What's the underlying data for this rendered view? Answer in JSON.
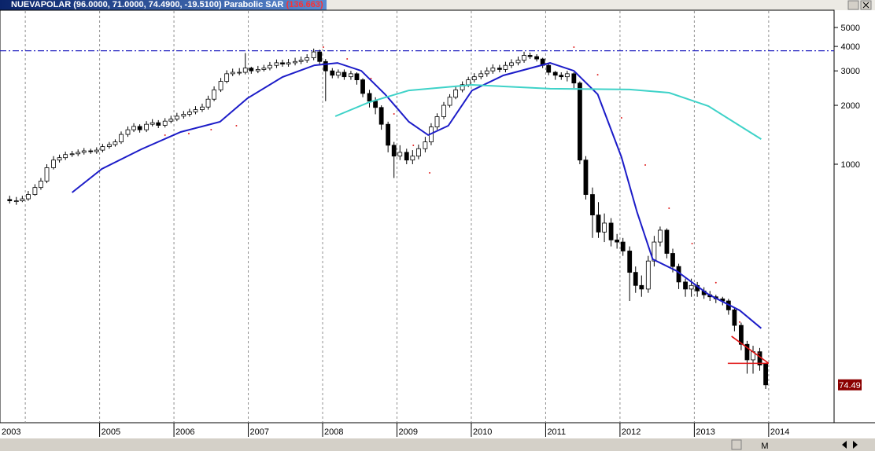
{
  "chart_data": {
    "type": "candlestick",
    "title": "NUEVAPOLAR",
    "ohlc_text": "(96.0000, 71.0000, 74.4900, -19.5100)",
    "indicator": "Parabolic SAR",
    "indicator_value_text": "(136.663)",
    "toolbar_label": "M",
    "log_y": true,
    "grid": "x",
    "up_color": "#ffffff",
    "down_color": "#000000",
    "xlim": [
      2003.66,
      2014.88
    ],
    "ylim": [
      47.7,
      6070
    ],
    "yticks": [
      1000,
      2000,
      3000,
      4000,
      5000
    ],
    "xticks": [
      2003,
      2005,
      2006,
      2007,
      2008,
      2009,
      2010,
      2011,
      2012,
      2013,
      2014
    ],
    "xgrid": [
      2004,
      2005,
      2006,
      2007,
      2008,
      2009,
      2010,
      2011,
      2012,
      2013,
      2014
    ],
    "x": [
      2003.79,
      2003.88,
      2003.96,
      2004.04,
      2004.13,
      2004.21,
      2004.29,
      2004.38,
      2004.46,
      2004.54,
      2004.63,
      2004.71,
      2004.79,
      2004.88,
      2004.96,
      2005.04,
      2005.13,
      2005.21,
      2005.29,
      2005.38,
      2005.46,
      2005.54,
      2005.63,
      2005.71,
      2005.79,
      2005.88,
      2005.96,
      2006.04,
      2006.13,
      2006.21,
      2006.29,
      2006.38,
      2006.46,
      2006.54,
      2006.63,
      2006.71,
      2006.79,
      2006.88,
      2006.96,
      2007.04,
      2007.13,
      2007.21,
      2007.29,
      2007.38,
      2007.46,
      2007.54,
      2007.63,
      2007.71,
      2007.79,
      2007.88,
      2007.96,
      2008.04,
      2008.13,
      2008.21,
      2008.29,
      2008.38,
      2008.46,
      2008.54,
      2008.63,
      2008.71,
      2008.79,
      2008.88,
      2008.96,
      2009.04,
      2009.13,
      2009.21,
      2009.29,
      2009.38,
      2009.46,
      2009.54,
      2009.63,
      2009.71,
      2009.79,
      2009.88,
      2009.96,
      2010.04,
      2010.13,
      2010.21,
      2010.29,
      2010.38,
      2010.46,
      2010.54,
      2010.63,
      2010.71,
      2010.79,
      2010.88,
      2010.96,
      2011.04,
      2011.13,
      2011.21,
      2011.29,
      2011.38,
      2011.46,
      2011.54,
      2011.63,
      2011.71,
      2011.79,
      2011.88,
      2011.96,
      2012.04,
      2012.13,
      2012.21,
      2012.29,
      2012.38,
      2012.46,
      2012.54,
      2012.63,
      2012.71,
      2012.79,
      2012.88,
      2012.96,
      2013.04,
      2013.13,
      2013.21,
      2013.29,
      2013.38,
      2013.46,
      2013.54,
      2013.63,
      2013.71,
      2013.79,
      2013.88,
      2013.96
    ],
    "open": [
      660,
      650,
      650,
      665,
      700,
      760,
      820,
      960,
      1050,
      1080,
      1120,
      1130,
      1150,
      1170,
      1160,
      1180,
      1230,
      1260,
      1300,
      1420,
      1500,
      1560,
      1500,
      1600,
      1630,
      1580,
      1660,
      1700,
      1760,
      1800,
      1850,
      1900,
      1960,
      2150,
      2400,
      2650,
      2900,
      2950,
      2950,
      3100,
      3000,
      3050,
      3100,
      3200,
      3300,
      3250,
      3300,
      3350,
      3400,
      3500,
      3750,
      3350,
      3000,
      2850,
      2950,
      2800,
      2900,
      2700,
      2300,
      2100,
      1950,
      1600,
      1250,
      1100,
      1150,
      1050,
      1100,
      1200,
      1300,
      1550,
      1750,
      2000,
      2200,
      2400,
      2550,
      2700,
      2800,
      2900,
      3000,
      3100,
      3050,
      3200,
      3300,
      3400,
      3600,
      3550,
      3450,
      3200,
      2950,
      2850,
      2800,
      2900,
      2600,
      1050,
      700,
      550,
      450,
      500,
      410,
      400,
      360,
      280,
      240,
      230,
      320,
      400,
      460,
      350,
      300,
      250,
      230,
      240,
      225,
      215,
      210,
      205,
      200,
      180,
      150,
      120,
      100,
      110,
      96
    ],
    "high": [
      690,
      680,
      690,
      730,
      790,
      850,
      1000,
      1100,
      1120,
      1160,
      1170,
      1190,
      1210,
      1200,
      1220,
      1270,
      1300,
      1340,
      1470,
      1560,
      1620,
      1600,
      1660,
      1700,
      1680,
      1720,
      1770,
      1830,
      1870,
      1920,
      1980,
      2040,
      2240,
      2500,
      2760,
      3020,
      3080,
      3100,
      3700,
      3150,
      3180,
      3220,
      3330,
      3430,
      3420,
      3450,
      3500,
      3550,
      3650,
      3900,
      3850,
      3450,
      3100,
      3050,
      3050,
      3000,
      2950,
      2750,
      2400,
      2200,
      2000,
      1650,
      1300,
      1250,
      1200,
      1180,
      1260,
      1380,
      1620,
      1820,
      2080,
      2280,
      2500,
      2650,
      2800,
      2920,
      3020,
      3130,
      3240,
      3220,
      3340,
      3440,
      3550,
      3760,
      3720,
      3650,
      3500,
      3250,
      3000,
      2950,
      3000,
      2950,
      2650,
      1100,
      760,
      640,
      560,
      530,
      440,
      420,
      380,
      300,
      270,
      340,
      430,
      480,
      470,
      370,
      310,
      260,
      260,
      250,
      235,
      225,
      215,
      210,
      205,
      185,
      155,
      125,
      118,
      115,
      96
    ],
    "low": [
      630,
      620,
      640,
      650,
      690,
      740,
      800,
      940,
      1020,
      1050,
      1090,
      1100,
      1120,
      1130,
      1130,
      1150,
      1200,
      1230,
      1270,
      1380,
      1460,
      1450,
      1460,
      1560,
      1530,
      1540,
      1620,
      1660,
      1710,
      1750,
      1800,
      1850,
      1900,
      2100,
      2340,
      2590,
      2820,
      2850,
      2880,
      2900,
      2920,
      2980,
      3020,
      3100,
      3150,
      3150,
      3200,
      3250,
      3300,
      3400,
      3200,
      2100,
      2750,
      2750,
      2700,
      2700,
      2550,
      2200,
      1950,
      1800,
      1500,
      1150,
      850,
      1050,
      1000,
      1000,
      1060,
      1150,
      1250,
      1500,
      1700,
      1950,
      2150,
      2330,
      2480,
      2620,
      2720,
      2800,
      2900,
      2950,
      2950,
      3100,
      3200,
      3300,
      3450,
      3350,
      3100,
      2850,
      2700,
      2700,
      2650,
      2450,
      1000,
      660,
      420,
      420,
      400,
      380,
      370,
      340,
      200,
      220,
      210,
      220,
      300,
      380,
      330,
      280,
      230,
      210,
      210,
      210,
      205,
      200,
      195,
      190,
      170,
      140,
      112,
      85,
      85,
      88,
      71
    ],
    "close": [
      650,
      650,
      665,
      700,
      760,
      820,
      960,
      1050,
      1080,
      1120,
      1130,
      1150,
      1170,
      1160,
      1180,
      1230,
      1260,
      1300,
      1420,
      1500,
      1560,
      1500,
      1600,
      1630,
      1580,
      1660,
      1700,
      1760,
      1800,
      1850,
      1900,
      1960,
      2150,
      2400,
      2650,
      2900,
      2950,
      2950,
      3100,
      3000,
      3050,
      3100,
      3200,
      3300,
      3250,
      3300,
      3350,
      3400,
      3500,
      3750,
      3350,
      3000,
      2850,
      2950,
      2800,
      2900,
      2700,
      2300,
      2100,
      1950,
      1600,
      1250,
      1100,
      1150,
      1050,
      1100,
      1200,
      1300,
      1550,
      1750,
      2000,
      2200,
      2400,
      2550,
      2700,
      2800,
      2900,
      3000,
      3100,
      3050,
      3200,
      3300,
      3400,
      3600,
      3550,
      3450,
      3200,
      2950,
      2850,
      2800,
      2900,
      2600,
      1050,
      700,
      550,
      450,
      500,
      410,
      400,
      360,
      280,
      240,
      230,
      320,
      400,
      460,
      350,
      300,
      250,
      230,
      240,
      225,
      215,
      210,
      205,
      200,
      180,
      150,
      120,
      100,
      110,
      94,
      74.49
    ],
    "overlays": [
      {
        "color": "#1c1cc8",
        "x": [
          2004.63,
          2005.03,
          2005.56,
          2006.09,
          2006.62,
          2006.99,
          2007.46,
          2007.89,
          2008.2,
          2008.52,
          2008.84,
          2009.16,
          2009.42,
          2009.69,
          2010.01,
          2010.43,
          2011.06,
          2011.38,
          2011.7,
          2012.02,
          2012.23,
          2012.44,
          2012.76,
          2013.19,
          2013.61,
          2013.9
        ],
        "values": [
          717,
          946,
          1192,
          1461,
          1648,
          2175,
          2790,
          3205,
          3294,
          3004,
          2277,
          1648,
          1409,
          1573,
          2384,
          2844,
          3294,
          3004,
          2277,
          1087,
          569,
          327,
          285,
          216,
          179,
          145
        ]
      },
      {
        "color": "#3ed2c8",
        "x": [
          2008.17,
          2008.63,
          2009.16,
          2010.01,
          2011.06,
          2012.13,
          2012.66,
          2013.19,
          2013.61,
          2013.9
        ],
        "values": [
          1757,
          2076,
          2384,
          2545,
          2431,
          2409,
          2320,
          1983,
          1573,
          1343
        ]
      }
    ],
    "sar": {
      "color": "#e02020",
      "x": [
        2005.88,
        2006.2,
        2006.5,
        2006.84,
        null,
        2008.01,
        2008.33,
        2008.65,
        2008.96,
        2009.22,
        2009.44,
        null,
        2011.38,
        2011.7,
        2012.02,
        2012.34,
        2012.66,
        2012.97,
        2013.29,
        2013.61,
        2013.87
      ],
      "values": [
        1408,
        1434,
        1502,
        1573,
        null,
        3967,
        3453,
        2739,
        1808,
        1248,
        903,
        null,
        3967,
        2867,
        1726,
        991,
        596,
        393,
        248,
        156,
        108
      ]
    },
    "hline": {
      "value": 3800,
      "color": "#2020c0"
    },
    "trendlines": [
      {
        "color": "#e01010",
        "x": [
          2013.5,
          2014.0
        ],
        "values": [
          132,
          96
        ]
      },
      {
        "color": "#e01010",
        "x": [
          2013.45,
          2014.0
        ],
        "values": [
          96,
          96
        ]
      }
    ],
    "last_price": 74.49
  }
}
